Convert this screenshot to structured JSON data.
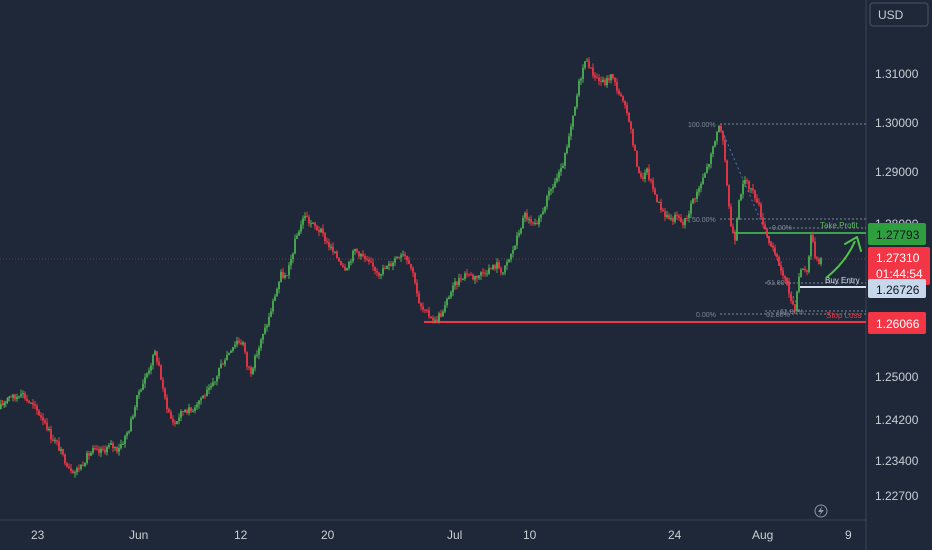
{
  "header": {
    "currency": "USD"
  },
  "colors": {
    "background": "#1e2838",
    "up": "#4caf50",
    "down": "#f23645",
    "take_profit": "#3aa34c",
    "stop_loss": "#f23645",
    "buy_entry": "#d6e0ee",
    "current": "#f23645",
    "arrow": "#4fc34a"
  },
  "icons": {
    "lightning": "lightning-icon"
  },
  "chart_data": {
    "type": "candlestick",
    "y_ticks": [
      "1.31000",
      "1.30000",
      "1.29000",
      "1.28000",
      "1.25000",
      "1.24200",
      "1.23400",
      "1.22700"
    ],
    "x_labels": [
      "23",
      "Jun",
      "12",
      "20",
      "Jul",
      "10",
      "24",
      "Aug",
      "9"
    ],
    "grid": false,
    "price_line_labels": {
      "take_profit": "1.27793",
      "current": "1.27310",
      "countdown": "01:44:54",
      "buy_entry": "1.26726",
      "stop_loss": "1.26066"
    },
    "fib_labels": {
      "top": "100.00%",
      "mid": "50.00%",
      "bottom": "0.00%",
      "left": "61.80%",
      "right": "61.80%",
      "upper_right": "0.00%",
      "lower_right": "61.80%"
    },
    "annotations": {
      "take_profit": "Take Profit",
      "buy_entry": "Buy Entry",
      "stop_loss": "Stop Loss"
    },
    "path_points": [
      [
        0,
        1.2434
      ],
      [
        5,
        1.2448
      ],
      [
        10,
        1.2462
      ],
      [
        16,
        1.2455
      ],
      [
        22,
        1.247
      ],
      [
        28,
        1.2452
      ],
      [
        34,
        1.244
      ],
      [
        40,
        1.2425
      ],
      [
        46,
        1.241
      ],
      [
        52,
        1.238
      ],
      [
        58,
        1.2365
      ],
      [
        64,
        1.234
      ],
      [
        70,
        1.232
      ],
      [
        76,
        1.231
      ],
      [
        82,
        1.2322
      ],
      [
        88,
        1.234
      ],
      [
        94,
        1.2352
      ],
      [
        100,
        1.2348
      ],
      [
        106,
        1.2355
      ],
      [
        112,
        1.2362
      ],
      [
        118,
        1.2355
      ],
      [
        124,
        1.237
      ],
      [
        130,
        1.2395
      ],
      [
        136,
        1.244
      ],
      [
        140,
        1.247
      ],
      [
        146,
        1.2495
      ],
      [
        152,
        1.2525
      ],
      [
        156,
        1.2545
      ],
      [
        160,
        1.252
      ],
      [
        164,
        1.247
      ],
      [
        168,
        1.244
      ],
      [
        172,
        1.2415
      ],
      [
        176,
        1.2405
      ],
      [
        180,
        1.242
      ],
      [
        186,
        1.2435
      ],
      [
        192,
        1.243
      ],
      [
        198,
        1.2448
      ],
      [
        204,
        1.246
      ],
      [
        210,
        1.247
      ],
      [
        216,
        1.2488
      ],
      [
        220,
        1.2515
      ],
      [
        226,
        1.2535
      ],
      [
        232,
        1.2555
      ],
      [
        238,
        1.257
      ],
      [
        244,
        1.2565
      ],
      [
        248,
        1.252
      ],
      [
        252,
        1.251
      ],
      [
        258,
        1.2545
      ],
      [
        264,
        1.258
      ],
      [
        270,
        1.2615
      ],
      [
        276,
        1.266
      ],
      [
        282,
        1.27
      ],
      [
        288,
        1.2695
      ],
      [
        292,
        1.273
      ],
      [
        296,
        1.2765
      ],
      [
        300,
        1.279
      ],
      [
        306,
        1.282
      ],
      [
        310,
        1.2805
      ],
      [
        316,
        1.2795
      ],
      [
        322,
        1.2785
      ],
      [
        328,
        1.2765
      ],
      [
        334,
        1.2745
      ],
      [
        340,
        1.273
      ],
      [
        346,
        1.2715
      ],
      [
        350,
        1.2725
      ],
      [
        356,
        1.275
      ],
      [
        362,
        1.274
      ],
      [
        368,
        1.2725
      ],
      [
        374,
        1.2715
      ],
      [
        380,
        1.2705
      ],
      [
        386,
        1.2712
      ],
      [
        392,
        1.2722
      ],
      [
        398,
        1.2738
      ],
      [
        404,
        1.2745
      ],
      [
        410,
        1.2728
      ],
      [
        416,
        1.269
      ],
      [
        420,
        1.264
      ],
      [
        426,
        1.2625
      ],
      [
        432,
        1.2618
      ],
      [
        436,
        1.2608
      ],
      [
        440,
        1.262
      ],
      [
        444,
        1.2625
      ],
      [
        450,
        1.266
      ],
      [
        456,
        1.268
      ],
      [
        462,
        1.2695
      ],
      [
        468,
        1.2705
      ],
      [
        474,
        1.2695
      ],
      [
        480,
        1.27
      ],
      [
        486,
        1.2708
      ],
      [
        492,
        1.2712
      ],
      [
        498,
        1.272
      ],
      [
        504,
        1.2705
      ],
      [
        510,
        1.273
      ],
      [
        516,
        1.276
      ],
      [
        520,
        1.2785
      ],
      [
        526,
        1.282
      ],
      [
        532,
        1.28
      ],
      [
        538,
        1.2795
      ],
      [
        544,
        1.283
      ],
      [
        550,
        1.286
      ],
      [
        556,
        1.2885
      ],
      [
        562,
        1.2905
      ],
      [
        568,
        1.295
      ],
      [
        572,
        1.299
      ],
      [
        576,
        1.303
      ],
      [
        580,
        1.308
      ],
      [
        584,
        1.311
      ],
      [
        588,
        1.313
      ],
      [
        592,
        1.3105
      ],
      [
        596,
        1.3095
      ],
      [
        600,
        1.3085
      ],
      [
        606,
        1.308
      ],
      [
        612,
        1.3095
      ],
      [
        618,
        1.307
      ],
      [
        624,
        1.304
      ],
      [
        630,
        1.301
      ],
      [
        634,
        1.296
      ],
      [
        638,
        1.292
      ],
      [
        642,
        1.289
      ],
      [
        648,
        1.2905
      ],
      [
        654,
        1.287
      ],
      [
        660,
        1.284
      ],
      [
        666,
        1.282
      ],
      [
        672,
        1.281
      ],
      [
        678,
        1.2815
      ],
      [
        684,
        1.28
      ],
      [
        688,
        1.2815
      ],
      [
        694,
        1.285
      ],
      [
        700,
        1.287
      ],
      [
        706,
        1.29
      ],
      [
        712,
        1.2935
      ],
      [
        716,
        1.2965
      ],
      [
        720,
        1.3
      ],
      [
        724,
        1.296
      ],
      [
        728,
        1.288
      ],
      [
        732,
        1.2795
      ],
      [
        736,
        1.2775
      ],
      [
        740,
        1.2855
      ],
      [
        746,
        1.2885
      ],
      [
        752,
        1.287
      ],
      [
        758,
        1.285
      ],
      [
        764,
        1.2805
      ],
      [
        768,
        1.278
      ],
      [
        772,
        1.2755
      ],
      [
        776,
        1.274
      ],
      [
        780,
        1.272
      ],
      [
        784,
        1.27
      ],
      [
        788,
        1.268
      ],
      [
        792,
        1.265
      ],
      [
        796,
        1.2635
      ],
      [
        800,
        1.27
      ],
      [
        804,
        1.2715
      ],
      [
        808,
        1.2705
      ],
      [
        812,
        1.278
      ],
      [
        816,
        1.274
      ],
      [
        820,
        1.2728
      ],
      [
        822,
        1.2731
      ]
    ]
  }
}
